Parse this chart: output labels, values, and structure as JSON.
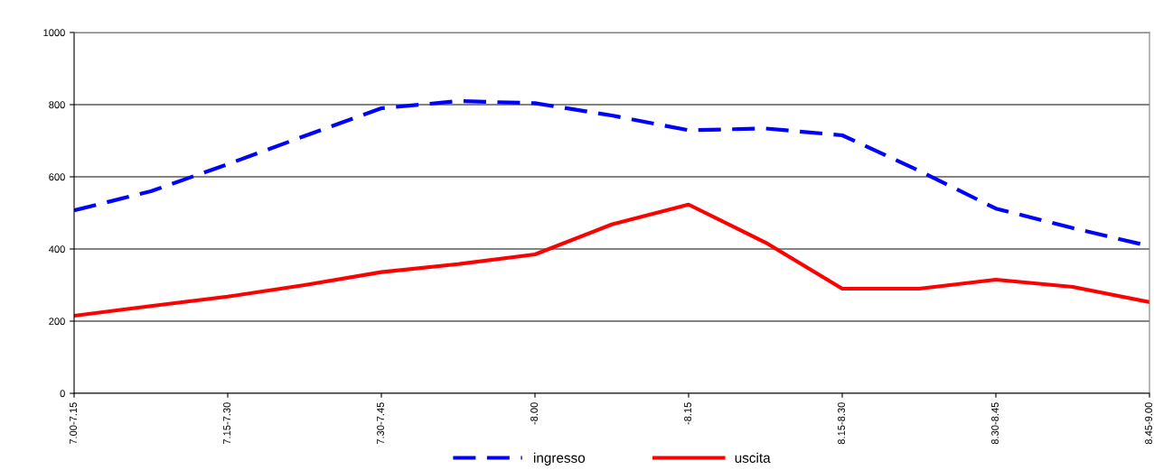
{
  "chart_data": {
    "type": "line",
    "categories": [
      "7.00-7.15",
      null,
      "7.15-7.30",
      null,
      "7.30-7.45",
      null,
      "-8.00",
      null,
      "-8.15",
      null,
      "8.15-8.30",
      null,
      "8.30-8.45",
      null,
      "8.45-9.00"
    ],
    "series": [
      {
        "name": "ingresso",
        "color": "#0000ff",
        "line_style": "dashed",
        "values": [
          507,
          560,
          635,
          713,
          790,
          810,
          804,
          770,
          729,
          734,
          715,
          617,
          512,
          458,
          408
        ]
      },
      {
        "name": "uscita",
        "color": "#ff0000",
        "line_style": "solid",
        "values": [
          215,
          242,
          268,
          300,
          336,
          358,
          385,
          468,
          523,
          418,
          290,
          290,
          315,
          295,
          253
        ]
      }
    ],
    "ylim": [
      0,
      1000
    ],
    "yticks": [
      0,
      200,
      400,
      600,
      800,
      1000
    ],
    "grid": "y",
    "legend": "bottom",
    "marker": "none"
  }
}
